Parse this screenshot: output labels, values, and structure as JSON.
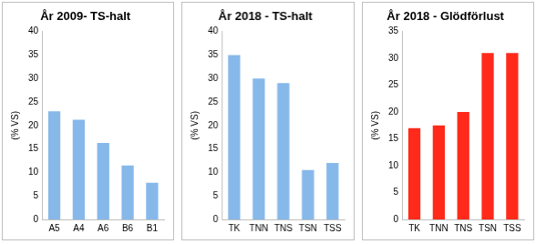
{
  "chart_data": [
    {
      "type": "bar",
      "title": "År 2009- TS-halt",
      "y_label": "(% VS)",
      "categories": [
        "A5",
        "A4",
        "A6",
        "B6",
        "B1"
      ],
      "values": [
        23,
        21.2,
        16.3,
        11.5,
        7.8
      ],
      "color": "#86b8ea",
      "ylim": [
        0,
        40
      ],
      "yticks": [
        0,
        5,
        10,
        15,
        20,
        25,
        30,
        35,
        40
      ],
      "grid": false
    },
    {
      "type": "bar",
      "title": "År 2018 - TS-halt",
      "y_label": "(% VS)",
      "categories": [
        "TK",
        "TNN",
        "TNS",
        "TSN",
        "TSS"
      ],
      "values": [
        35,
        30,
        29,
        10.5,
        12
      ],
      "color": "#86b8ea",
      "ylim": [
        0,
        40
      ],
      "yticks": [
        0,
        5,
        10,
        15,
        20,
        25,
        30,
        35,
        40
      ],
      "grid": false
    },
    {
      "type": "bar",
      "title": "År 2018 - Glödförlust",
      "y_label": "(% VS)",
      "categories": [
        "TK",
        "TNN",
        "TNS",
        "TSN",
        "TSS"
      ],
      "values": [
        17,
        17.5,
        20,
        31,
        31
      ],
      "color": "#ff2a1a",
      "ylim": [
        0,
        35
      ],
      "yticks": [
        0,
        5,
        10,
        15,
        20,
        25,
        30,
        35
      ],
      "grid": false
    }
  ]
}
